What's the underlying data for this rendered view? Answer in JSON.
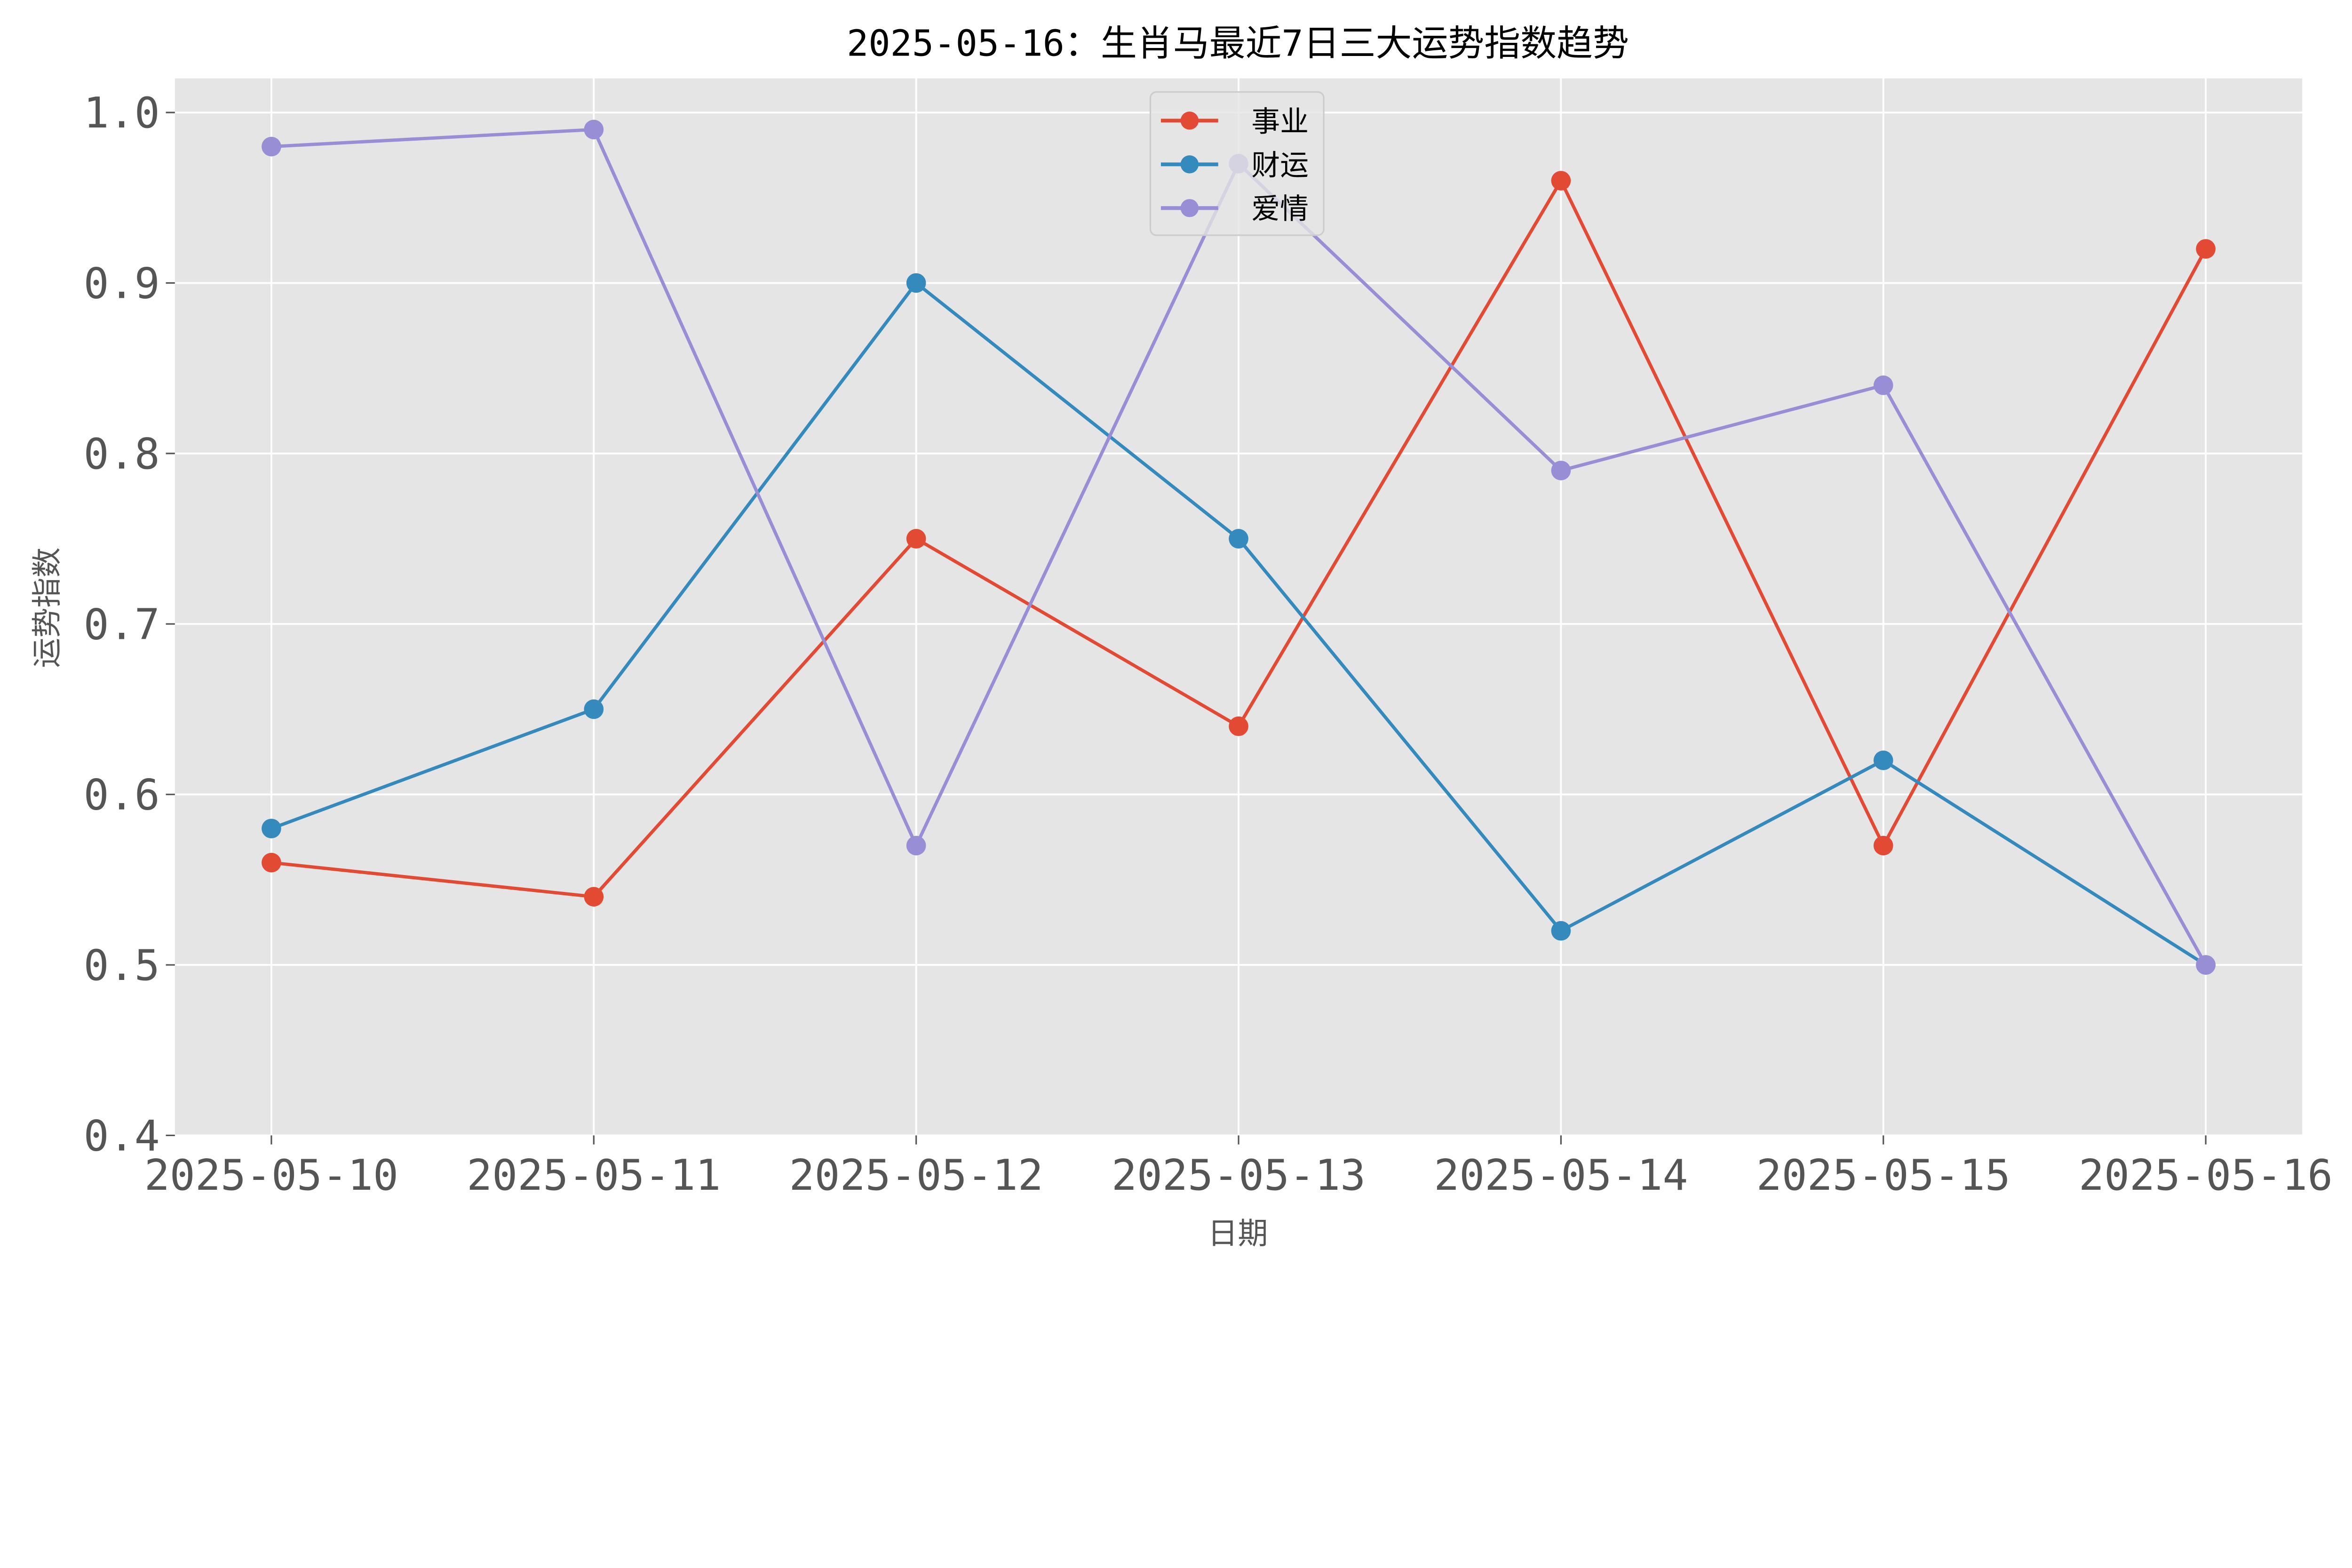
{
  "chart_data": {
    "type": "line",
    "title": "2025-05-16：生肖马最近7日三大运势指数趋势",
    "xlabel": "日期",
    "ylabel": "运势指数",
    "categories": [
      "2025-05-10",
      "2025-05-11",
      "2025-05-12",
      "2025-05-13",
      "2025-05-14",
      "2025-05-15",
      "2025-05-16"
    ],
    "ylim": [
      0.4,
      1.02
    ],
    "yticks": [
      "0.4",
      "0.5",
      "0.6",
      "0.7",
      "0.8",
      "0.9",
      "1.0"
    ],
    "grid": true,
    "legend": "top-center",
    "series": [
      {
        "name": "事业",
        "color": "#E24A33",
        "values": [
          0.56,
          0.54,
          0.75,
          0.64,
          0.96,
          0.57,
          0.92
        ]
      },
      {
        "name": "财运",
        "color": "#348ABD",
        "values": [
          0.58,
          0.65,
          0.9,
          0.75,
          0.52,
          0.62,
          0.5
        ]
      },
      {
        "name": "爱情",
        "color": "#988ED5",
        "values": [
          0.98,
          0.99,
          0.57,
          0.97,
          0.79,
          0.84,
          0.5
        ]
      }
    ]
  }
}
